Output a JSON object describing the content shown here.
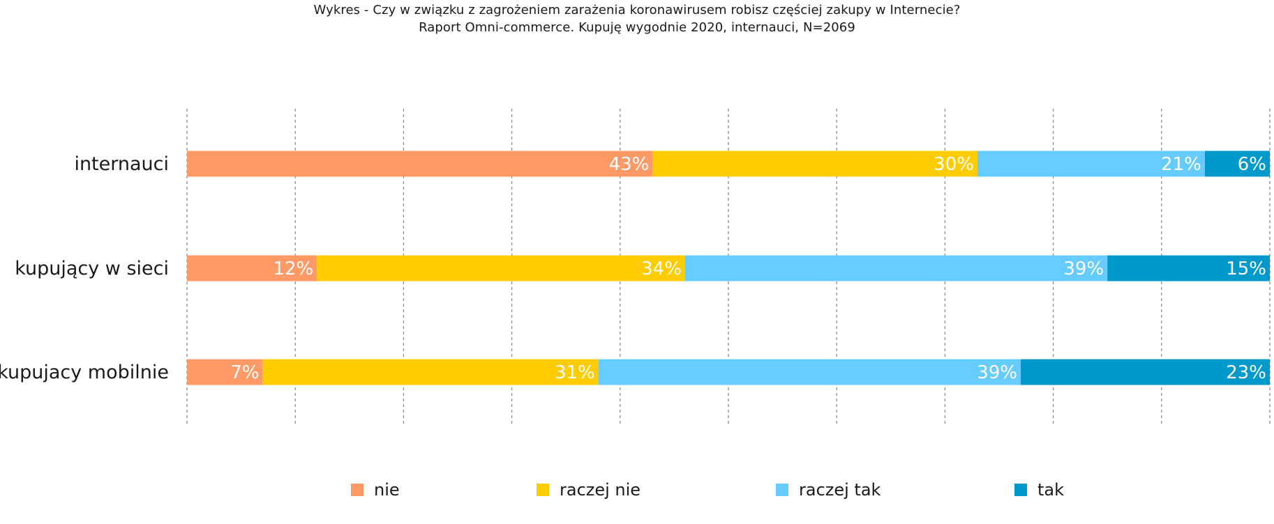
{
  "chart_data": {
    "type": "bar",
    "orientation": "horizontal",
    "stacked": true,
    "title": "Wykres - Czy w związku z zagrożeniem zarażenia koronawirusem robisz częściej zakupy w Internecie?",
    "subtitle": "Raport Omni-commerce. Kupuję wygodnie 2020, internauci, N=2069",
    "categories": [
      "internauci",
      "kupujący w sieci",
      "kupujacy mobilnie"
    ],
    "series": [
      {
        "name": "nie",
        "color": "#ff9966",
        "values": [
          43,
          12,
          7
        ],
        "labels": [
          "43%",
          "12%",
          "7%"
        ]
      },
      {
        "name": "raczej nie",
        "color": "#ffcc00",
        "values": [
          30,
          34,
          31
        ],
        "labels": [
          "30%",
          "34%",
          "31%"
        ]
      },
      {
        "name": "raczej tak",
        "color": "#66ccff",
        "values": [
          21,
          39,
          39
        ],
        "labels": [
          "21%",
          "39%",
          "39%"
        ]
      },
      {
        "name": "tak",
        "color": "#0099cc",
        "values": [
          6,
          15,
          23
        ],
        "labels": [
          "6%",
          "15%",
          "23%"
        ]
      }
    ],
    "xlim": [
      0,
      100
    ],
    "gridlines": [
      0,
      10,
      20,
      30,
      40,
      50,
      60,
      70,
      80,
      90,
      100
    ],
    "grid": true,
    "grid_style": "dashed",
    "legend_position": "bottom"
  }
}
